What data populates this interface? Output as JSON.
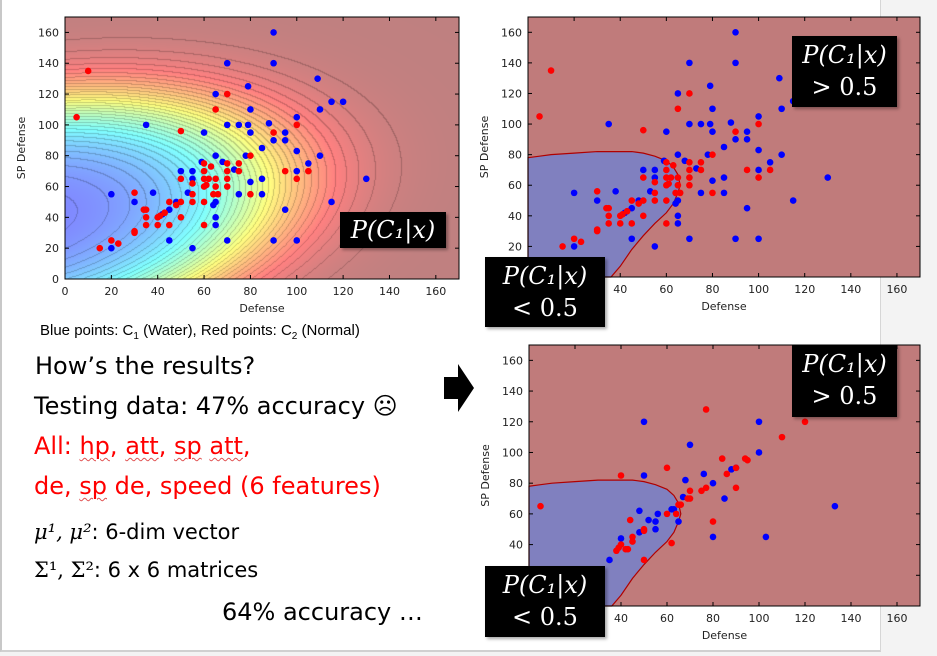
{
  "caption": {
    "prefix": "Blue points: C",
    "sub1": "1",
    "mid": " (Water), Red points: C",
    "sub2": "2",
    "suffix": " (Normal)"
  },
  "text": {
    "line1": "How’s the results?",
    "line2": "Testing data: 47% accuracy ☹",
    "line3_prefix": "All: ",
    "line3_words": [
      "hp",
      ", ",
      "att",
      ", ",
      "sp",
      " ",
      "att",
      ","
    ],
    "line4_prefix": "de, ",
    "line4_sp": "sp",
    "line4_rest": " de, speed (6 features)",
    "line5_math": "μ¹, μ²",
    "line5_rest": ": 6-dim vector",
    "line6_math": "Σ¹, Σ²",
    "line6_rest": ": 6 x 6 matrices",
    "line7": "64% accuracy …"
  },
  "overlays": {
    "prob": "P(C₁|x)",
    "gt": "> 0.5",
    "lt": "< 0.5"
  },
  "colors": {
    "blue": "#0000ff",
    "red": "#ff0000",
    "class1_region": "#8080bf",
    "class2_region": "#c07b7b",
    "highlight_text": "#ff0000"
  },
  "chart_data": [
    {
      "type": "scatter",
      "subtype": "posterior-contour (jet colormap)",
      "title": "",
      "xlabel": "Defense",
      "ylabel": "SP Defense",
      "xlim": [
        0,
        170
      ],
      "ylim": [
        0,
        170
      ],
      "xticks": [
        0,
        20,
        40,
        60,
        80,
        100,
        120,
        140,
        160
      ],
      "yticks": [
        0,
        20,
        40,
        60,
        80,
        100,
        120,
        140,
        160
      ],
      "annotation": "P(C₁|x)",
      "series": [
        {
          "color": "#0000ff",
          "points": [
            [
              90,
              160
            ],
            [
              70,
              140
            ],
            [
              90,
              140
            ],
            [
              65,
              120
            ],
            [
              79,
              125
            ],
            [
              109,
              130
            ],
            [
              80,
              110
            ],
            [
              110,
              110
            ],
            [
              115,
              115
            ],
            [
              120,
              115
            ],
            [
              35,
              100
            ],
            [
              60,
              95
            ],
            [
              70,
              100
            ],
            [
              75,
              100
            ],
            [
              79,
              100
            ],
            [
              80,
              95
            ],
            [
              88,
              101
            ],
            [
              90,
              90
            ],
            [
              95,
              95
            ],
            [
              95,
              90
            ],
            [
              100,
              105
            ],
            [
              85,
              85
            ],
            [
              100,
              83
            ],
            [
              110,
              80
            ],
            [
              65,
              80
            ],
            [
              68,
              76
            ],
            [
              59,
              76
            ],
            [
              78,
              80
            ],
            [
              73,
              71
            ],
            [
              105,
              75
            ],
            [
              100,
              70
            ],
            [
              50,
              70
            ],
            [
              55,
              70
            ],
            [
              55,
              65
            ],
            [
              85,
              65
            ],
            [
              80,
              63
            ],
            [
              130,
              65
            ],
            [
              20,
              55
            ],
            [
              30,
              50
            ],
            [
              38,
              56
            ],
            [
              53,
              56
            ],
            [
              48,
              50
            ],
            [
              65,
              50
            ],
            [
              64,
              48
            ],
            [
              75,
              55
            ],
            [
              85,
              55
            ],
            [
              115,
              50
            ],
            [
              45,
              45
            ],
            [
              42,
              42
            ],
            [
              65,
              40
            ],
            [
              65,
              35
            ],
            [
              95,
              45
            ],
            [
              45,
              25
            ],
            [
              70,
              25
            ],
            [
              90,
              25
            ],
            [
              100,
              25
            ],
            [
              20,
              20
            ],
            [
              55,
              20
            ]
          ]
        },
        {
          "color": "#ff0000",
          "points": [
            [
              10,
              135
            ],
            [
              5,
              105
            ],
            [
              70,
              120
            ],
            [
              65,
              110
            ],
            [
              50,
              96
            ],
            [
              90,
              95
            ],
            [
              100,
              100
            ],
            [
              60,
              75
            ],
            [
              63,
              73
            ],
            [
              70,
              75
            ],
            [
              75,
              75
            ],
            [
              80,
              80
            ],
            [
              60,
              70
            ],
            [
              70,
              70
            ],
            [
              75,
              70
            ],
            [
              95,
              70
            ],
            [
              105,
              70
            ],
            [
              50,
              65
            ],
            [
              60,
              65
            ],
            [
              62,
              65
            ],
            [
              65,
              65
            ],
            [
              70,
              65
            ],
            [
              100,
              65
            ],
            [
              55,
              62
            ],
            [
              60,
              60
            ],
            [
              61,
              61
            ],
            [
              65,
              60
            ],
            [
              70,
              60
            ],
            [
              30,
              56
            ],
            [
              55,
              55
            ],
            [
              64,
              55
            ],
            [
              66,
              55
            ],
            [
              80,
              55
            ],
            [
              45,
              50
            ],
            [
              50,
              50
            ],
            [
              55,
              50
            ],
            [
              60,
              50
            ],
            [
              48,
              48
            ],
            [
              35,
              45
            ],
            [
              34,
              45
            ],
            [
              35,
              40
            ],
            [
              40,
              40
            ],
            [
              41,
              41
            ],
            [
              43,
              43
            ],
            [
              50,
              40
            ],
            [
              35,
              35
            ],
            [
              40,
              35
            ],
            [
              45,
              35
            ],
            [
              60,
              35
            ],
            [
              30,
              30
            ],
            [
              30,
              31
            ],
            [
              20,
              25
            ],
            [
              23,
              23
            ],
            [
              15,
              20
            ]
          ]
        }
      ]
    },
    {
      "type": "scatter",
      "subtype": "decision-regions",
      "title": "",
      "xlabel": "Defense",
      "ylabel": "SP Defense",
      "xlim": [
        0,
        170
      ],
      "ylim": [
        0,
        170
      ],
      "xticks": [
        40,
        60,
        80,
        100,
        120,
        140,
        160
      ],
      "yticks": [
        20,
        40,
        60,
        80,
        100,
        120,
        140,
        160
      ],
      "annotations": [
        "P(C₁|x) > 0.5",
        "P(C₁|x) < 0.5"
      ],
      "class1_region_boundary": [
        [
          0,
          78
        ],
        [
          5,
          79
        ],
        [
          10,
          80
        ],
        [
          20,
          81
        ],
        [
          30,
          82
        ],
        [
          45,
          82
        ],
        [
          50,
          81
        ],
        [
          55,
          79
        ],
        [
          60,
          76
        ],
        [
          63,
          72
        ],
        [
          65,
          67
        ],
        [
          66,
          60
        ],
        [
          65,
          55
        ],
        [
          63,
          48
        ],
        [
          60,
          42
        ],
        [
          55,
          35
        ],
        [
          50,
          27
        ],
        [
          45,
          18
        ],
        [
          40,
          7
        ],
        [
          36,
          0
        ],
        [
          0,
          0
        ]
      ],
      "series_ref": "same points as chart 1 (training data)"
    },
    {
      "type": "scatter",
      "subtype": "decision-regions",
      "title": "",
      "xlabel": "Defense",
      "ylabel": "SP Defense",
      "xlim": [
        0,
        170
      ],
      "ylim": [
        0,
        170
      ],
      "xticks": [
        40,
        60,
        80,
        100,
        120,
        140,
        160
      ],
      "yticks": [
        40,
        60,
        80,
        100,
        120,
        140,
        160
      ],
      "annotations": [
        "P(C₁|x) > 0.5",
        "P(C₁|x) < 0.5"
      ],
      "class1_region_boundary": [
        [
          0,
          78
        ],
        [
          5,
          79
        ],
        [
          10,
          80
        ],
        [
          20,
          81
        ],
        [
          30,
          82
        ],
        [
          45,
          82
        ],
        [
          50,
          81
        ],
        [
          55,
          79
        ],
        [
          60,
          76
        ],
        [
          63,
          72
        ],
        [
          65,
          67
        ],
        [
          66,
          60
        ],
        [
          65,
          55
        ],
        [
          63,
          48
        ],
        [
          60,
          42
        ],
        [
          55,
          35
        ],
        [
          50,
          27
        ],
        [
          45,
          18
        ],
        [
          40,
          7
        ],
        [
          36,
          0
        ],
        [
          0,
          0
        ]
      ],
      "series": [
        {
          "color": "#0000ff",
          "points": [
            [
              50,
              120
            ],
            [
              70,
              105
            ],
            [
              100,
              120
            ],
            [
              100,
              100
            ],
            [
              68,
              82
            ],
            [
              76,
              86
            ],
            [
              80,
              80
            ],
            [
              88,
              89
            ],
            [
              90,
              90
            ],
            [
              85,
              70
            ],
            [
              67,
              71
            ],
            [
              50,
              85
            ],
            [
              48,
              62
            ],
            [
              52,
              56
            ],
            [
              55,
              55
            ],
            [
              56,
              60
            ],
            [
              62,
              63
            ],
            [
              63,
              63
            ],
            [
              65,
              55
            ],
            [
              55,
              50
            ],
            [
              48,
              48
            ],
            [
              40,
              44
            ],
            [
              80,
              45
            ],
            [
              103,
              45
            ],
            [
              133,
              65
            ],
            [
              35,
              30
            ]
          ]
        },
        {
          "color": "#ff0000",
          "points": [
            [
              77,
              128
            ],
            [
              120,
              120
            ],
            [
              110,
              110
            ],
            [
              84,
              96
            ],
            [
              94,
              96
            ],
            [
              95,
              95
            ],
            [
              60,
              90
            ],
            [
              90,
              90
            ],
            [
              86,
              86
            ],
            [
              40,
              85
            ],
            [
              75,
              75
            ],
            [
              77,
              77
            ],
            [
              90,
              77
            ],
            [
              70,
              75
            ],
            [
              69,
              70
            ],
            [
              70,
              70
            ],
            [
              65,
              66
            ],
            [
              66,
              66
            ],
            [
              60,
              60
            ],
            [
              64,
              60
            ],
            [
              44,
              56
            ],
            [
              80,
              55
            ],
            [
              50,
              50
            ],
            [
              50,
              49
            ],
            [
              45,
              45
            ],
            [
              45,
              42
            ],
            [
              40,
              40
            ],
            [
              39,
              38
            ],
            [
              38,
              36
            ],
            [
              42,
              37
            ],
            [
              43,
              37
            ],
            [
              62,
              41
            ],
            [
              50,
              30
            ],
            [
              5,
              65
            ]
          ]
        }
      ]
    }
  ]
}
